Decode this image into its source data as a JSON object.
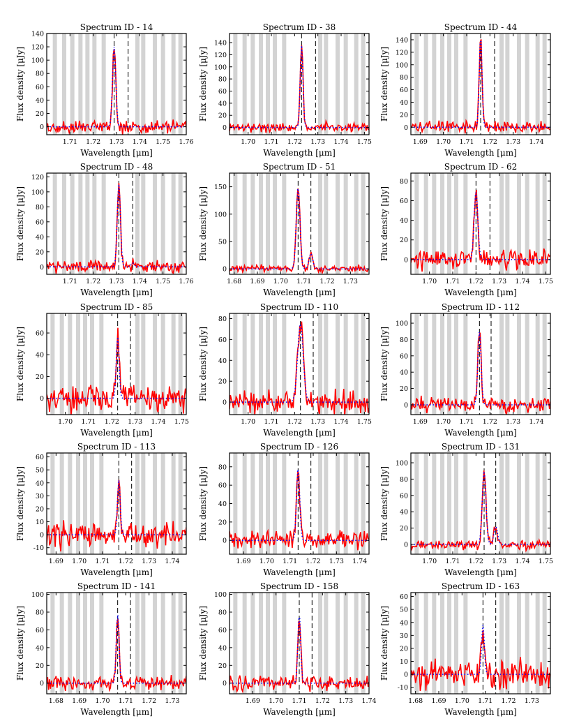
{
  "figure": {
    "xlabel": "Wavelength [μm]",
    "ylabel": "Flux density [μJy]"
  },
  "chart_data": [
    {
      "type": "line",
      "title": "Spectrum ID - 14",
      "xlabel": "Wavelength [μm]",
      "ylabel": "Flux density [μJy]",
      "xlim": [
        1.7,
        1.76
      ],
      "ylim": [
        -12,
        140
      ],
      "xticks": [
        1.71,
        1.72,
        1.73,
        1.74,
        1.75,
        1.76
      ],
      "yticks": [
        0,
        20,
        40,
        60,
        80,
        100,
        120,
        140
      ],
      "peak": 1.729,
      "secondary": 1.735,
      "amp": 120,
      "amp2": 0,
      "sigma": 0.0007,
      "noise": 8,
      "seed": 14,
      "bands": [
        1.7035,
        1.7075,
        1.711,
        1.7145,
        1.7175,
        1.7205,
        1.7245,
        1.739,
        1.7415,
        1.7465,
        1.75,
        1.7545,
        1.7575
      ]
    },
    {
      "type": "line",
      "title": "Spectrum ID - 38",
      "xlabel": "Wavelength [μm]",
      "ylabel": "Flux density [μJy]",
      "xlim": [
        1.692,
        1.752
      ],
      "ylim": [
        -12,
        155
      ],
      "xticks": [
        1.7,
        1.71,
        1.72,
        1.73,
        1.74,
        1.75
      ],
      "yticks": [
        0,
        20,
        40,
        60,
        80,
        100,
        120,
        140
      ],
      "peak": 1.723,
      "secondary": 1.729,
      "amp": 135,
      "amp2": 0,
      "sigma": 0.0006,
      "noise": 6,
      "seed": 38,
      "bands": [
        1.6945,
        1.6985,
        1.702,
        1.7055,
        1.7085,
        1.7115,
        1.7155,
        1.731,
        1.7335,
        1.7385,
        1.742,
        1.7465,
        1.7495
      ]
    },
    {
      "type": "line",
      "title": "Spectrum ID - 44",
      "xlabel": "Wavelength [μm]",
      "ylabel": "Flux density [μJy]",
      "xlim": [
        1.686,
        1.746
      ],
      "ylim": [
        -12,
        150
      ],
      "xticks": [
        1.69,
        1.7,
        1.71,
        1.72,
        1.73,
        1.74
      ],
      "yticks": [
        0,
        20,
        40,
        60,
        80,
        100,
        120,
        140
      ],
      "peak": 1.716,
      "secondary": 1.722,
      "amp": 145,
      "amp2": 0,
      "sigma": 0.0006,
      "noise": 8,
      "seed": 44,
      "bands": [
        1.6885,
        1.6925,
        1.696,
        1.6995,
        1.7025,
        1.7055,
        1.7095,
        1.725,
        1.7275,
        1.7325,
        1.736,
        1.7405,
        1.7435
      ]
    },
    {
      "type": "line",
      "title": "Spectrum ID - 48",
      "xlabel": "Wavelength [μm]",
      "ylabel": "Flux density [μJy]",
      "xlim": [
        1.7,
        1.76
      ],
      "ylim": [
        -10,
        125
      ],
      "xticks": [
        1.71,
        1.72,
        1.73,
        1.74,
        1.75,
        1.76
      ],
      "yticks": [
        0,
        20,
        40,
        60,
        80,
        100,
        120
      ],
      "peak": 1.731,
      "secondary": 1.737,
      "amp": 110,
      "amp2": 5,
      "sigma": 0.0007,
      "noise": 7,
      "seed": 48,
      "bands": [
        1.7035,
        1.7075,
        1.711,
        1.7145,
        1.7175,
        1.7205,
        1.7245,
        1.739,
        1.7415,
        1.7465,
        1.75,
        1.7545,
        1.7575
      ]
    },
    {
      "type": "line",
      "title": "Spectrum ID - 51",
      "xlabel": "Wavelength [μm]",
      "ylabel": "Flux density [μJy]",
      "xlim": [
        1.678,
        1.738
      ],
      "ylim": [
        -10,
        175
      ],
      "xticks": [
        1.68,
        1.69,
        1.7,
        1.71,
        1.72,
        1.73
      ],
      "yticks": [
        0,
        50,
        100,
        150
      ],
      "peak": 1.7075,
      "secondary": 1.713,
      "amp": 148,
      "amp2": 28,
      "sigma": 0.0008,
      "noise": 5,
      "seed": 51,
      "bands": [
        1.6805,
        1.6845,
        1.688,
        1.6915,
        1.6945,
        1.6975,
        1.7015,
        1.717,
        1.7195,
        1.7245,
        1.728,
        1.7325,
        1.7355
      ]
    },
    {
      "type": "line",
      "title": "Spectrum ID - 62",
      "xlabel": "Wavelength [μm]",
      "ylabel": "Flux density [μJy]",
      "xlim": [
        1.692,
        1.752
      ],
      "ylim": [
        -15,
        88
      ],
      "xticks": [
        1.7,
        1.71,
        1.72,
        1.73,
        1.74,
        1.75
      ],
      "yticks": [
        0,
        20,
        40,
        60,
        80
      ],
      "peak": 1.72,
      "secondary": 1.726,
      "amp": 70,
      "amp2": 0,
      "sigma": 0.0008,
      "noise": 8,
      "seed": 62,
      "bands": [
        1.6945,
        1.6985,
        1.702,
        1.7055,
        1.7085,
        1.7115,
        1.7155,
        1.731,
        1.7335,
        1.7385,
        1.742,
        1.7465,
        1.7495
      ]
    },
    {
      "type": "line",
      "title": "Spectrum ID - 85",
      "xlabel": "Wavelength [μm]",
      "ylabel": "Flux density [μJy]",
      "xlim": [
        1.692,
        1.752
      ],
      "ylim": [
        -15,
        78
      ],
      "xticks": [
        1.7,
        1.71,
        1.72,
        1.73,
        1.74,
        1.75
      ],
      "yticks": [
        0,
        20,
        40,
        60
      ],
      "peak": 1.7225,
      "secondary": 1.728,
      "amp": 57,
      "amp2": 0,
      "sigma": 0.0006,
      "noise": 10,
      "seed": 85,
      "bands": [
        1.6945,
        1.6985,
        1.702,
        1.7055,
        1.7085,
        1.7115,
        1.7155,
        1.731,
        1.7335,
        1.7385,
        1.742,
        1.7465,
        1.7495
      ]
    },
    {
      "type": "line",
      "title": "Spectrum ID - 110",
      "xlabel": "Wavelength [μm]",
      "ylabel": "Flux density [μJy]",
      "xlim": [
        1.692,
        1.752
      ],
      "ylim": [
        -12,
        85
      ],
      "xticks": [
        1.7,
        1.71,
        1.72,
        1.73,
        1.74,
        1.75
      ],
      "yticks": [
        0,
        20,
        40,
        60,
        80
      ],
      "peak": 1.7225,
      "secondary": 1.728,
      "amp": 75,
      "amp2": 0,
      "sigma": 0.0012,
      "noise": 9,
      "seed": 110,
      "bands": [
        1.6945,
        1.6985,
        1.702,
        1.7055,
        1.7085,
        1.7115,
        1.7155,
        1.731,
        1.7335,
        1.7385,
        1.742,
        1.7465,
        1.7495
      ]
    },
    {
      "type": "line",
      "title": "Spectrum ID - 112",
      "xlabel": "Wavelength [μm]",
      "ylabel": "Flux density [μJy]",
      "xlim": [
        1.686,
        1.746
      ],
      "ylim": [
        -12,
        112
      ],
      "xticks": [
        1.69,
        1.7,
        1.71,
        1.72,
        1.73,
        1.74
      ],
      "yticks": [
        0,
        20,
        40,
        60,
        80,
        100
      ],
      "peak": 1.7155,
      "secondary": 1.7205,
      "amp": 90,
      "amp2": 0,
      "sigma": 0.0007,
      "noise": 7,
      "seed": 112,
      "bands": [
        1.6885,
        1.6925,
        1.696,
        1.6995,
        1.7025,
        1.7055,
        1.7095,
        1.725,
        1.7275,
        1.7325,
        1.736,
        1.7405,
        1.7435
      ]
    },
    {
      "type": "line",
      "title": "Spectrum ID - 113",
      "xlabel": "Wavelength [μm]",
      "ylabel": "Flux density [μJy]",
      "xlim": [
        1.686,
        1.746
      ],
      "ylim": [
        -15,
        63
      ],
      "xticks": [
        1.69,
        1.7,
        1.71,
        1.72,
        1.73,
        1.74
      ],
      "yticks": [
        -10,
        0,
        10,
        20,
        30,
        40,
        50,
        60
      ],
      "peak": 1.717,
      "secondary": 1.7225,
      "amp": 42,
      "amp2": 0,
      "sigma": 0.0006,
      "noise": 8,
      "seed": 113,
      "bands": [
        1.6885,
        1.6925,
        1.696,
        1.6995,
        1.7025,
        1.7055,
        1.7095,
        1.725,
        1.7275,
        1.7325,
        1.736,
        1.7405,
        1.7435
      ]
    },
    {
      "type": "line",
      "title": "Spectrum ID - 126",
      "xlabel": "Wavelength [μm]",
      "ylabel": "Flux density [μJy]",
      "xlim": [
        1.684,
        1.744
      ],
      "ylim": [
        -15,
        95
      ],
      "xticks": [
        1.69,
        1.7,
        1.71,
        1.72,
        1.73,
        1.74
      ],
      "yticks": [
        0,
        20,
        40,
        60,
        80
      ],
      "peak": 1.7135,
      "secondary": 1.719,
      "amp": 78,
      "amp2": 0,
      "sigma": 0.0007,
      "noise": 8,
      "seed": 126,
      "bands": [
        1.6865,
        1.6905,
        1.694,
        1.6975,
        1.7005,
        1.7035,
        1.7075,
        1.723,
        1.7255,
        1.7305,
        1.734,
        1.7385,
        1.7415
      ]
    },
    {
      "type": "line",
      "title": "Spectrum ID - 131",
      "xlabel": "Wavelength [μm]",
      "ylabel": "Flux density [μJy]",
      "xlim": [
        1.692,
        1.752
      ],
      "ylim": [
        -12,
        112
      ],
      "xticks": [
        1.7,
        1.71,
        1.72,
        1.73,
        1.74,
        1.75
      ],
      "yticks": [
        0,
        20,
        40,
        60,
        80,
        100
      ],
      "peak": 1.7235,
      "secondary": 1.7285,
      "amp": 90,
      "amp2": 22,
      "sigma": 0.0008,
      "noise": 5,
      "seed": 131,
      "bands": [
        1.6945,
        1.6985,
        1.702,
        1.7055,
        1.7085,
        1.7115,
        1.7155,
        1.731,
        1.7335,
        1.7385,
        1.742,
        1.7465,
        1.7495
      ]
    },
    {
      "type": "line",
      "title": "Spectrum ID - 141",
      "xlabel": "Wavelength [μm]",
      "ylabel": "Flux density [μJy]",
      "xlim": [
        1.676,
        1.736
      ],
      "ylim": [
        -12,
        102
      ],
      "xticks": [
        1.68,
        1.69,
        1.7,
        1.71,
        1.72,
        1.73
      ],
      "yticks": [
        0,
        20,
        40,
        60,
        80,
        100
      ],
      "peak": 1.7065,
      "secondary": 1.712,
      "amp": 78,
      "amp2": 0,
      "sigma": 0.0006,
      "noise": 7,
      "seed": 141,
      "bands": [
        1.6785,
        1.6825,
        1.686,
        1.6895,
        1.6925,
        1.6955,
        1.6995,
        1.715,
        1.7175,
        1.7225,
        1.726,
        1.7305,
        1.7335
      ]
    },
    {
      "type": "line",
      "title": "Spectrum ID - 158",
      "xlabel": "Wavelength [μm]",
      "ylabel": "Flux density [μJy]",
      "xlim": [
        1.68,
        1.74
      ],
      "ylim": [
        -12,
        102
      ],
      "xticks": [
        1.69,
        1.7,
        1.71,
        1.72,
        1.73,
        1.74
      ],
      "yticks": [
        0,
        20,
        40,
        60,
        80,
        100
      ],
      "peak": 1.71,
      "secondary": 1.7155,
      "amp": 78,
      "amp2": 0,
      "sigma": 0.0006,
      "noise": 7,
      "seed": 158,
      "bands": [
        1.6825,
        1.6865,
        1.69,
        1.6935,
        1.6965,
        1.6995,
        1.7035,
        1.719,
        1.7215,
        1.7265,
        1.73,
        1.7345,
        1.7375
      ]
    },
    {
      "type": "line",
      "title": "Spectrum ID - 163",
      "xlabel": "Wavelength [μm]",
      "ylabel": "Flux density [μJy]",
      "xlim": [
        1.678,
        1.738
      ],
      "ylim": [
        -15,
        63
      ],
      "xticks": [
        1.68,
        1.69,
        1.7,
        1.71,
        1.72,
        1.73
      ],
      "yticks": [
        -10,
        0,
        10,
        20,
        30,
        40,
        50,
        60
      ],
      "peak": 1.709,
      "secondary": 1.7145,
      "amp": 38,
      "amp2": 0,
      "sigma": 0.0006,
      "noise": 9,
      "seed": 163,
      "bands": [
        1.6805,
        1.6845,
        1.688,
        1.6915,
        1.6945,
        1.6975,
        1.7015,
        1.717,
        1.7195,
        1.7245,
        1.728,
        1.7325,
        1.7355
      ]
    }
  ]
}
